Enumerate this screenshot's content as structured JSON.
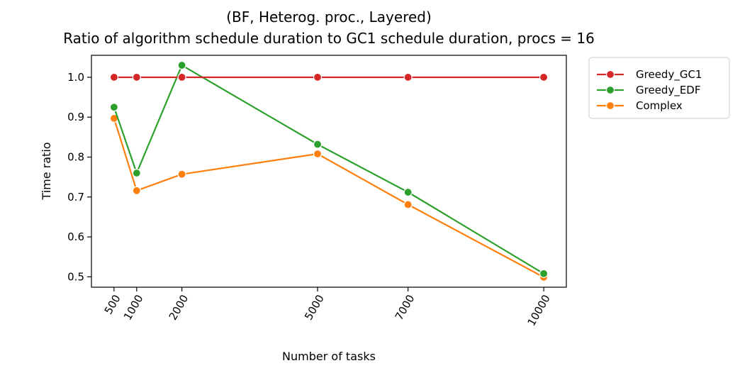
{
  "chart_data": {
    "type": "line",
    "title_line1": "(BF, Heterog. proc., Layered)",
    "title_line2": "Ratio of algorithm schedule duration to GC1 schedule duration, procs = 16",
    "xlabel": "Number of tasks",
    "ylabel": "Time ratio",
    "x": [
      500,
      1000,
      2000,
      5000,
      7000,
      10000
    ],
    "x_tick_labels": [
      "500",
      "1000",
      "2000",
      "5000",
      "7000",
      "10000"
    ],
    "xlim": [
      0,
      10500
    ],
    "ylim": [
      0.474,
      1.055
    ],
    "y_ticks": [
      0.5,
      0.6,
      0.7,
      0.8,
      0.9,
      1.0
    ],
    "y_tick_labels": [
      "0.5",
      "0.6",
      "0.7",
      "0.8",
      "0.9",
      "1.0"
    ],
    "grid": false,
    "legend_position": "outside-right",
    "series": [
      {
        "name": "Greedy_GC1",
        "color": "#d62728",
        "values": [
          1.0,
          1.0,
          1.0,
          1.0,
          1.0,
          1.0
        ]
      },
      {
        "name": "Greedy_EDF",
        "color": "#2ca02c",
        "values": [
          0.925,
          0.76,
          1.03,
          0.832,
          0.712,
          0.508
        ]
      },
      {
        "name": "Complex",
        "color": "#ff7f0e",
        "values": [
          0.897,
          0.716,
          0.757,
          0.808,
          0.681,
          0.499
        ]
      }
    ]
  }
}
